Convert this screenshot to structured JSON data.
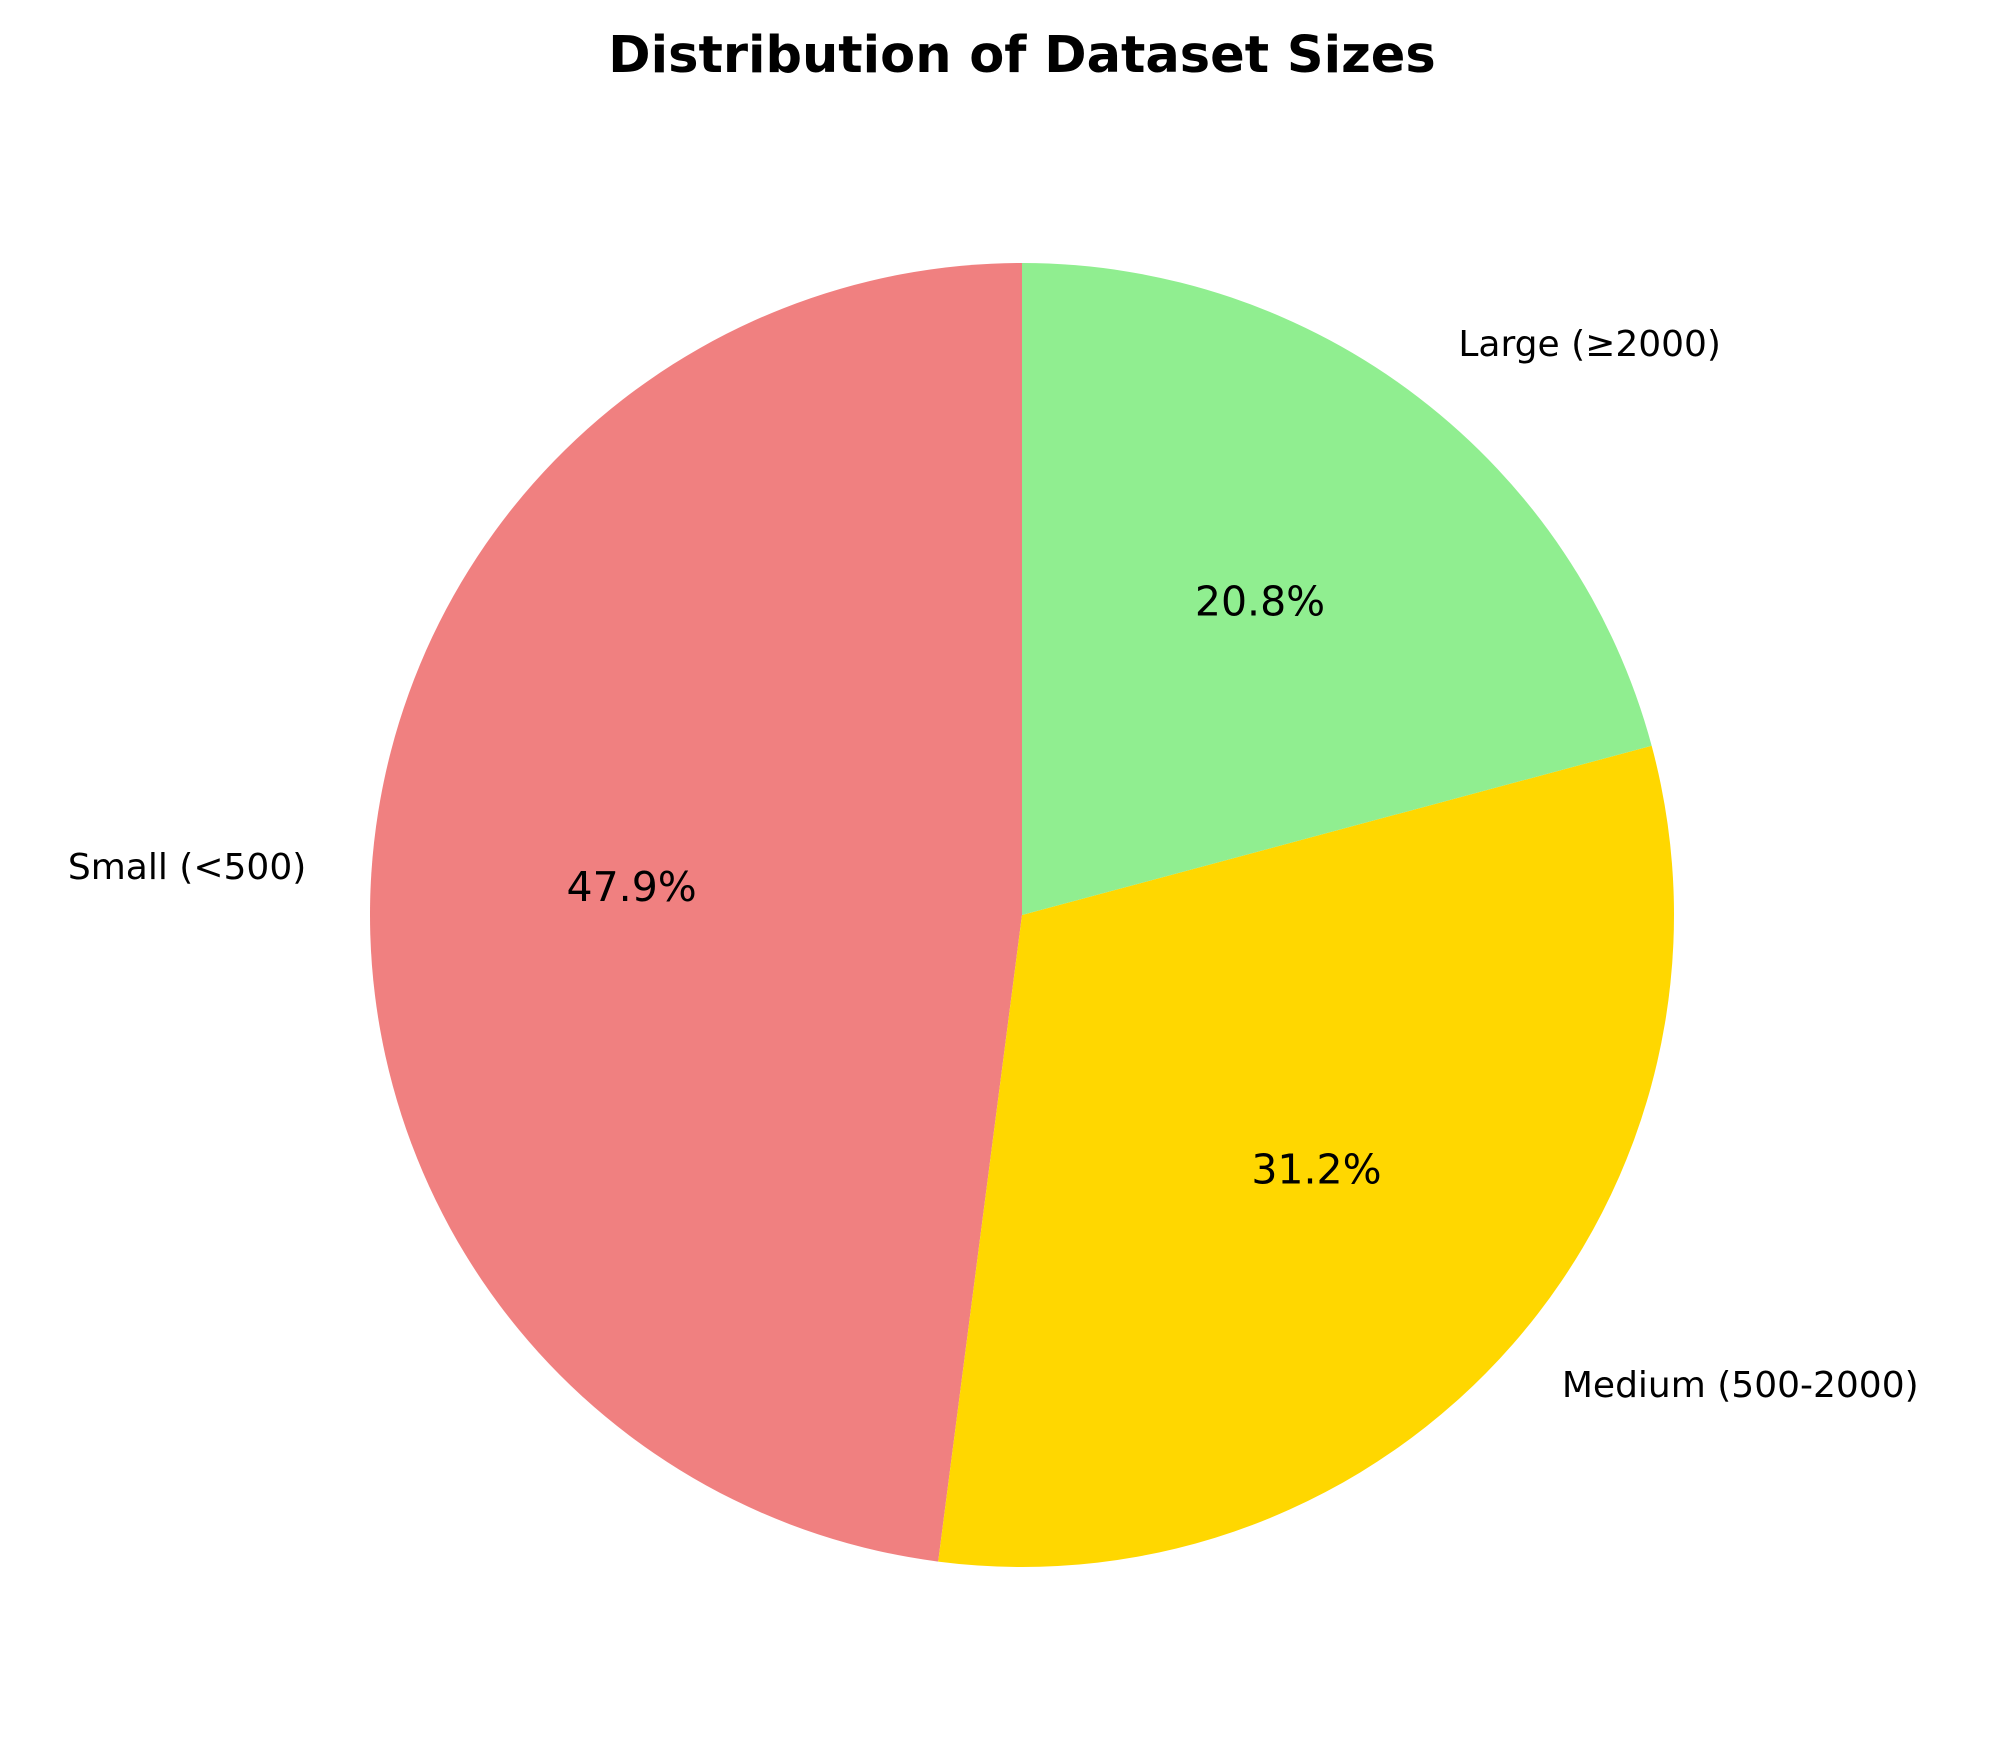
{
  "chart_data": {
    "type": "pie",
    "title": "Distribution of Dataset Sizes",
    "labels": [
      "Small (<500)",
      "Medium (500-2000)",
      "Large (≥2000)"
    ],
    "values": [
      47.9,
      31.2,
      20.8
    ],
    "value_labels": [
      "47.9%",
      "31.2%",
      "20.8%"
    ],
    "colors": [
      "#F08080",
      "#FFD700",
      "#90EE90"
    ],
    "start_angle_degrees": 90,
    "direction": "counterclockwise",
    "legend": "none"
  }
}
